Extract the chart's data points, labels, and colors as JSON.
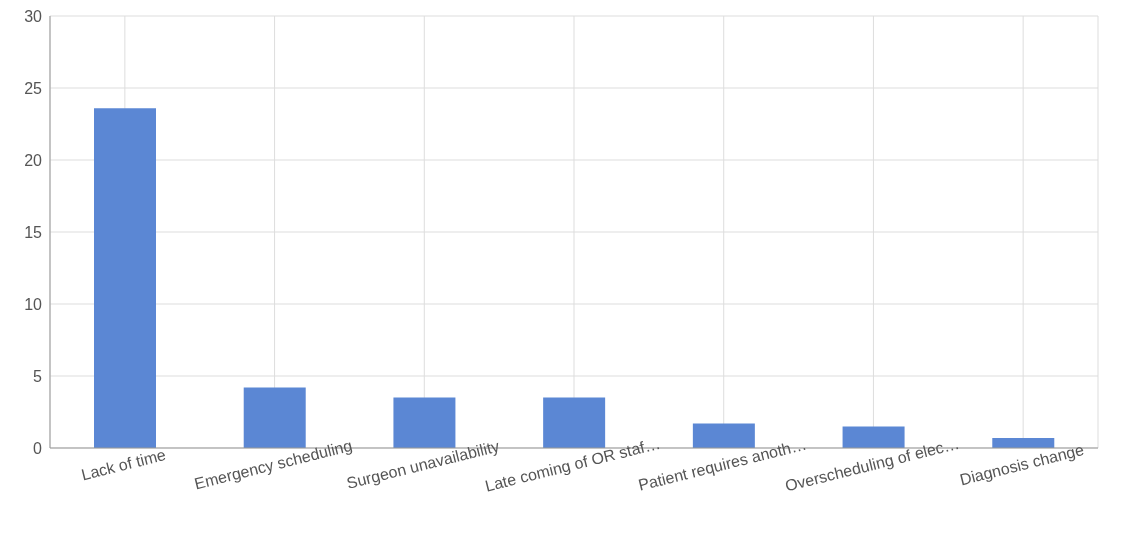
{
  "chart_data": {
    "type": "bar",
    "categories": [
      "Lack of time",
      "Emergency scheduling",
      "Surgeon unavailability",
      "Late coming of OR staf…",
      "Patient requires anoth…",
      "Overscheduling of elec…",
      "Diagnosis change"
    ],
    "values": [
      23.6,
      4.2,
      3.5,
      3.5,
      1.7,
      1.5,
      0.7
    ],
    "color": "#5b87d4",
    "ylim": [
      0,
      30
    ],
    "yticks": [
      0,
      5,
      10,
      15,
      20,
      25,
      30
    ],
    "grid": true
  }
}
